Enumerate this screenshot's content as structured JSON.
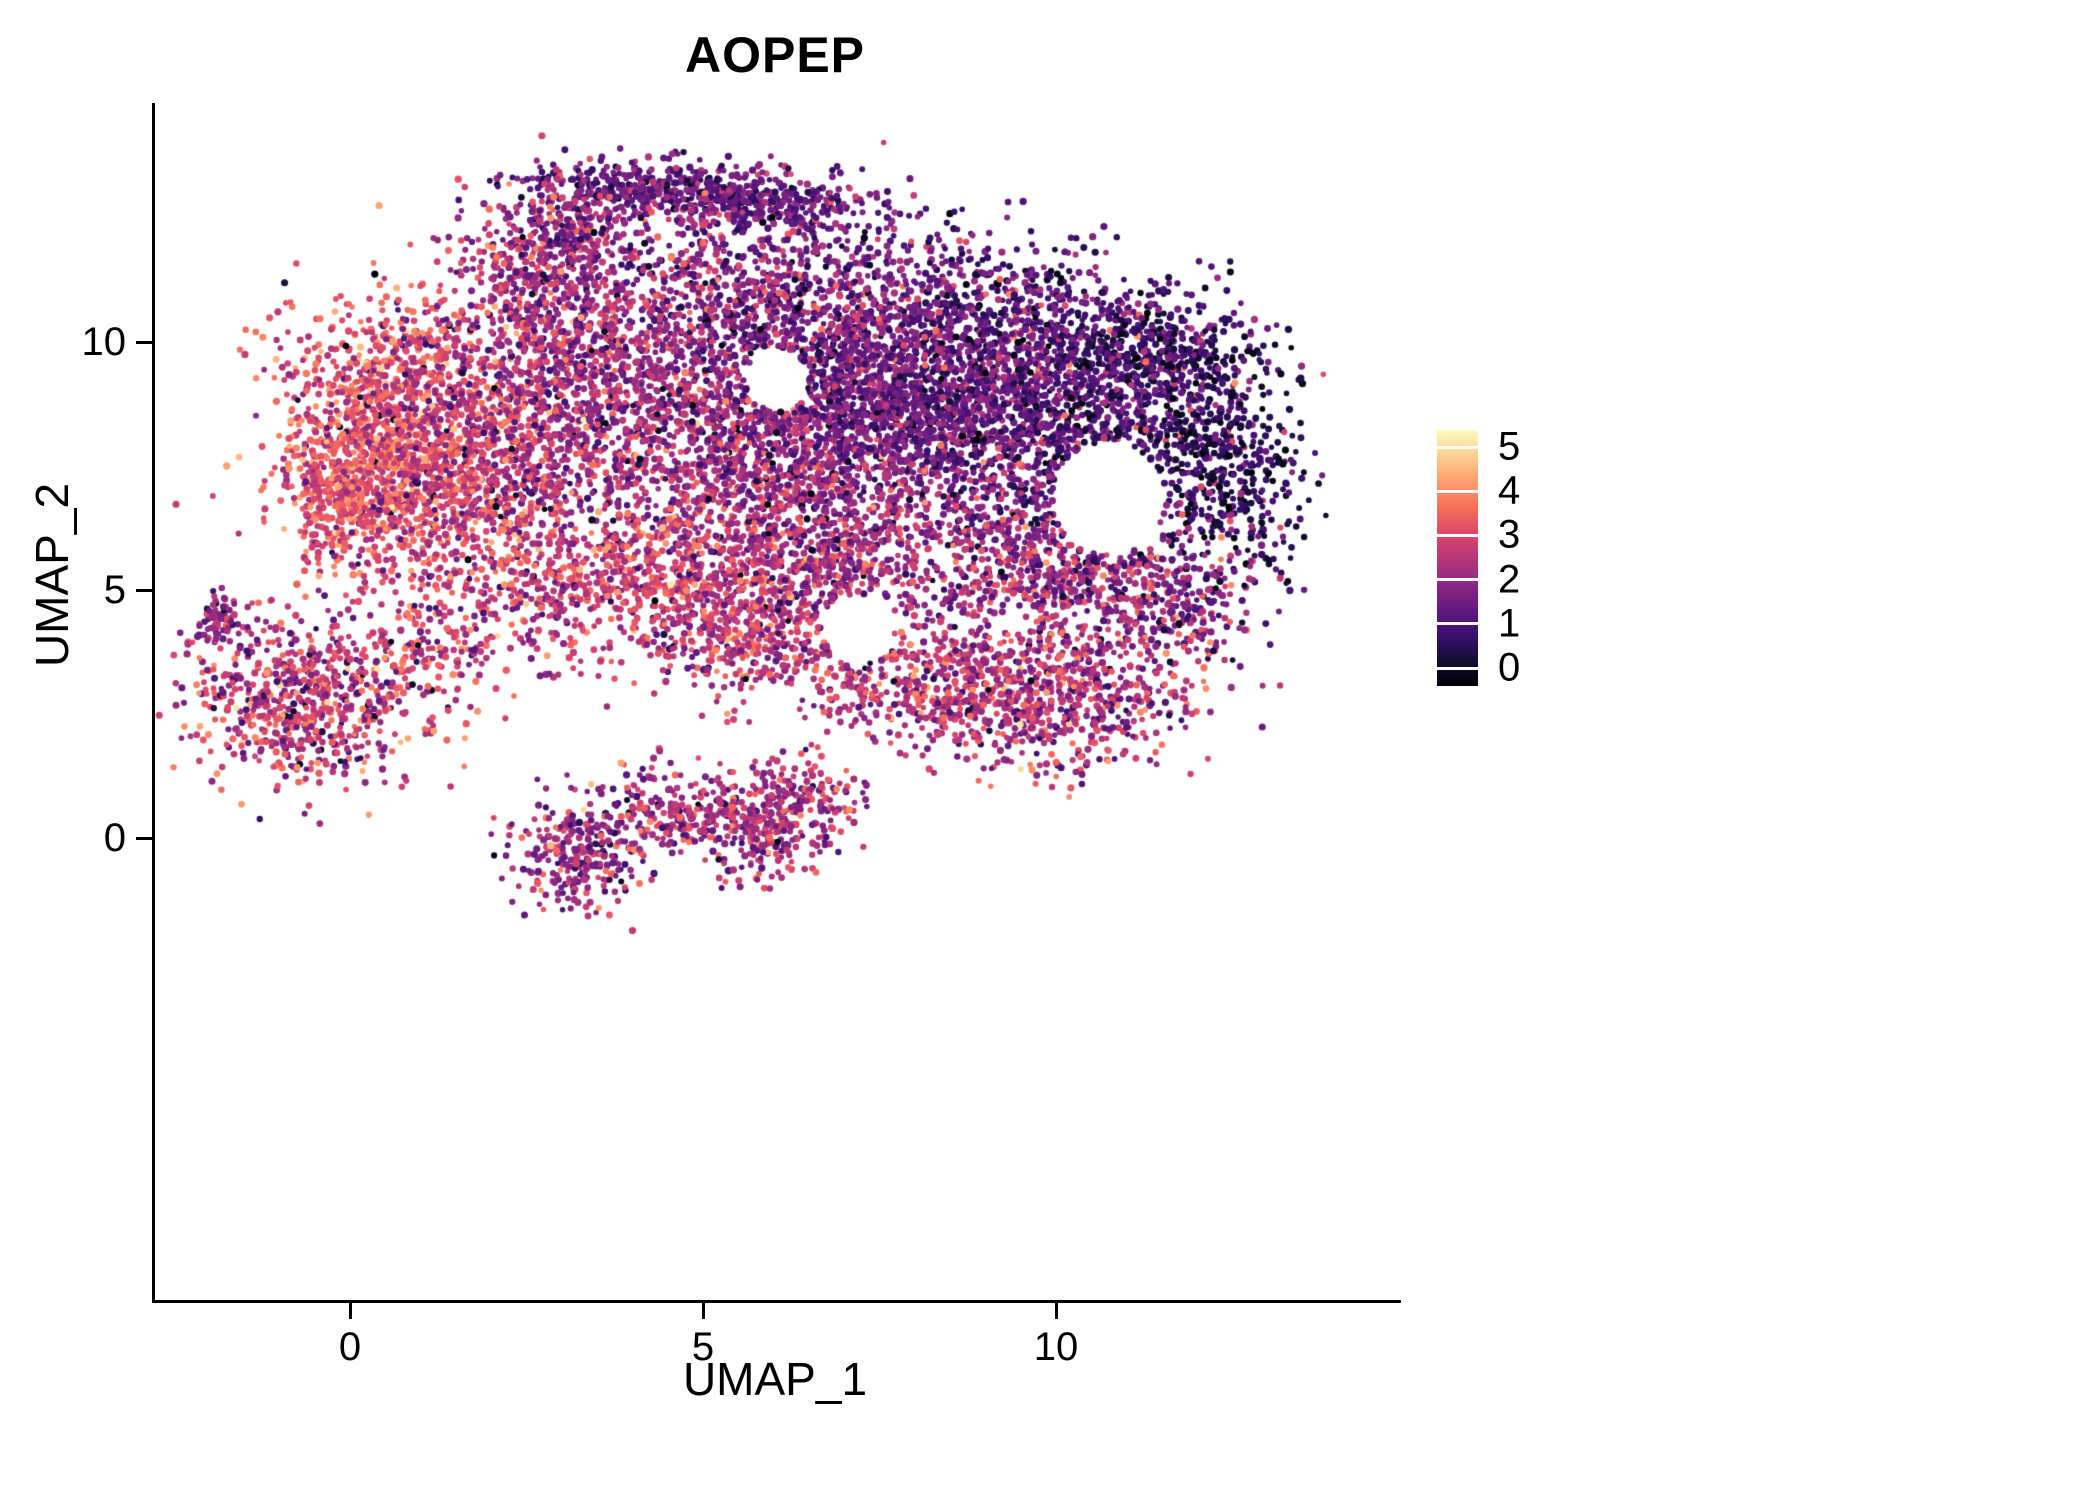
{
  "title": "AOPEP",
  "axes": {
    "x_label": "UMAP_1",
    "y_label": "UMAP_2",
    "x_ticks": [
      0,
      5,
      10
    ],
    "y_ticks": [
      0,
      5,
      10
    ]
  },
  "colorbar": {
    "labels": [
      5,
      4,
      3,
      2,
      1,
      0
    ],
    "min": 0,
    "max": 5
  },
  "chart_data": {
    "type": "scatter",
    "title": "AOPEP",
    "xlabel": "UMAP_1",
    "ylabel": "UMAP_2",
    "xlim": [
      -2.8,
      14.85
    ],
    "ylim": [
      -9.3,
      14.8
    ],
    "x_ticks": [
      0,
      5,
      10
    ],
    "y_ticks": [
      0,
      5,
      10
    ],
    "grid": false,
    "legend_position": "right",
    "note": "Single-cell UMAP feature plot of AOPEP expression (0-5, magma colormap). Point cloud approximated as a seeded gaussian-mixture: clusters give UMAP_1/UMAP_2 centers (u,v), spreads (sx,sy), point counts (n), mean expression (e) and sd.",
    "color_scale": {
      "name": "magma",
      "domain": [
        0,
        5
      ],
      "stops": [
        [
          0.0,
          "#000004"
        ],
        [
          0.1,
          "#140e36"
        ],
        [
          0.2,
          "#3b0f70"
        ],
        [
          0.3,
          "#641a80"
        ],
        [
          0.4,
          "#8c2981"
        ],
        [
          0.5,
          "#b73779"
        ],
        [
          0.6,
          "#de4968"
        ],
        [
          0.7,
          "#f7705c"
        ],
        [
          0.8,
          "#fe9f6d"
        ],
        [
          0.9,
          "#fecf92"
        ],
        [
          1.0,
          "#fcfdbf"
        ]
      ]
    },
    "seed": 12345,
    "point_radius_px": 3.2,
    "random_expr_fraction": 0.06,
    "clusters": [
      {
        "u": 4.2,
        "v": 13.05,
        "sx": 1.05,
        "sy": 0.32,
        "n": 420,
        "e": 1.6,
        "sd": 0.6
      },
      {
        "u": 5.9,
        "v": 12.75,
        "sx": 0.75,
        "sy": 0.3,
        "n": 260,
        "e": 1.7,
        "sd": 0.6
      },
      {
        "u": 3.1,
        "v": 12.3,
        "sx": 0.45,
        "sy": 0.4,
        "n": 160,
        "e": 2.2,
        "sd": 0.7
      },
      {
        "u": 2.7,
        "v": 11.3,
        "sx": 0.55,
        "sy": 0.75,
        "n": 300,
        "e": 2.5,
        "sd": 0.75
      },
      {
        "u": 4.8,
        "v": 11.4,
        "sx": 1.5,
        "sy": 0.75,
        "n": 380,
        "e": 2.0,
        "sd": 0.8
      },
      {
        "u": 7.0,
        "v": 11.5,
        "sx": 1.3,
        "sy": 0.8,
        "n": 300,
        "e": 1.6,
        "sd": 0.7
      },
      {
        "u": 9.4,
        "v": 10.4,
        "sx": 1.2,
        "sy": 0.75,
        "n": 480,
        "e": 1.4,
        "sd": 0.6
      },
      {
        "u": 11.5,
        "v": 9.9,
        "sx": 0.75,
        "sy": 0.55,
        "n": 260,
        "e": 1.0,
        "sd": 0.5
      },
      {
        "u": 0.55,
        "v": 8.4,
        "sx": 0.8,
        "sy": 1.25,
        "n": 1050,
        "e": 3.3,
        "sd": 0.65
      },
      {
        "u": 0.05,
        "v": 6.9,
        "sx": 0.5,
        "sy": 0.8,
        "n": 330,
        "e": 3.5,
        "sd": 0.6
      },
      {
        "u": 1.8,
        "v": 7.3,
        "sx": 0.95,
        "sy": 1.35,
        "n": 950,
        "e": 2.9,
        "sd": 0.7
      },
      {
        "u": 3.4,
        "v": 9.6,
        "sx": 1.1,
        "sy": 1.0,
        "n": 700,
        "e": 2.4,
        "sd": 0.75
      },
      {
        "u": 5.3,
        "v": 7.6,
        "sx": 1.55,
        "sy": 1.25,
        "n": 1500,
        "e": 2.4,
        "sd": 0.75
      },
      {
        "u": 6.4,
        "v": 9.6,
        "sx": 1.2,
        "sy": 0.9,
        "n": 700,
        "e": 1.9,
        "sd": 0.7
      },
      {
        "u": 8.3,
        "v": 8.6,
        "sx": 1.35,
        "sy": 1.15,
        "n": 1650,
        "e": 1.7,
        "sd": 0.65
      },
      {
        "u": 10.5,
        "v": 8.4,
        "sx": 1.05,
        "sy": 1.25,
        "n": 900,
        "e": 1.3,
        "sd": 0.6
      },
      {
        "u": 12.35,
        "v": 7.6,
        "sx": 0.6,
        "sy": 1.15,
        "n": 480,
        "e": 0.75,
        "sd": 0.45
      },
      {
        "u": 9.9,
        "v": 5.4,
        "sx": 1.3,
        "sy": 0.85,
        "n": 850,
        "e": 2.3,
        "sd": 0.8
      },
      {
        "u": 11.6,
        "v": 4.6,
        "sx": 0.6,
        "sy": 0.6,
        "n": 180,
        "e": 2.0,
        "sd": 0.8
      },
      {
        "u": 4.3,
        "v": 5.1,
        "sx": 1.5,
        "sy": 0.7,
        "n": 750,
        "e": 2.9,
        "sd": 0.7
      },
      {
        "u": 6.6,
        "v": 5.6,
        "sx": 0.9,
        "sy": 0.7,
        "n": 380,
        "e": 2.5,
        "sd": 0.75
      },
      {
        "u": 5.6,
        "v": 3.9,
        "sx": 0.8,
        "sy": 0.5,
        "n": 280,
        "e": 2.8,
        "sd": 0.7
      },
      {
        "u": 8.0,
        "v": 3.1,
        "sx": 1.0,
        "sy": 0.65,
        "n": 420,
        "e": 2.7,
        "sd": 0.7
      },
      {
        "u": 10.0,
        "v": 2.8,
        "sx": 1.0,
        "sy": 0.7,
        "n": 600,
        "e": 2.6,
        "sd": 0.8
      },
      {
        "u": 1.3,
        "v": 3.9,
        "sx": 0.7,
        "sy": 0.5,
        "n": 150,
        "e": 2.7,
        "sd": 0.8
      },
      {
        "u": -0.6,
        "v": 2.7,
        "sx": 0.85,
        "sy": 0.8,
        "n": 680,
        "e": 2.8,
        "sd": 0.8
      },
      {
        "u": -1.85,
        "v": 4.45,
        "sx": 0.13,
        "sy": 0.28,
        "n": 70,
        "e": 2.2,
        "sd": 0.6
      },
      {
        "u": 3.2,
        "v": -0.4,
        "sx": 0.45,
        "sy": 0.55,
        "n": 260,
        "e": 2.4,
        "sd": 0.8
      },
      {
        "u": 4.6,
        "v": 0.5,
        "sx": 0.55,
        "sy": 0.45,
        "n": 230,
        "e": 2.5,
        "sd": 0.7
      },
      {
        "u": 5.9,
        "v": 0.2,
        "sx": 0.5,
        "sy": 0.55,
        "n": 260,
        "e": 2.6,
        "sd": 0.7
      },
      {
        "u": 6.6,
        "v": 0.9,
        "sx": 0.35,
        "sy": 0.4,
        "n": 90,
        "e": 2.4,
        "sd": 0.7
      }
    ],
    "holes": [
      {
        "u": 10.75,
        "v": 6.85,
        "r": 0.8
      },
      {
        "u": 6.05,
        "v": 9.25,
        "r": 0.45
      },
      {
        "u": 7.2,
        "v": 4.2,
        "r": 0.5
      }
    ]
  }
}
